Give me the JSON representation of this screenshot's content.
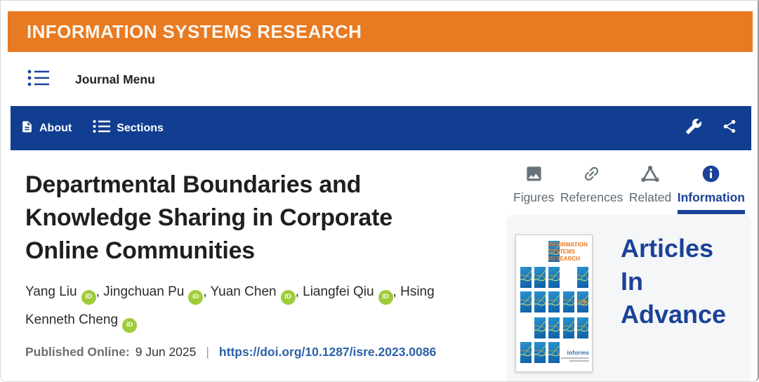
{
  "header": {
    "brand": "INFORMATION SYSTEMS RESEARCH"
  },
  "journal_menu": {
    "label": "Journal Menu",
    "icon": "menu-list-icon"
  },
  "nav": {
    "about_label": "About",
    "about_icon": "document-icon",
    "sections_label": "Sections",
    "sections_icon": "list-icon",
    "tools_icon": "wrench-icon",
    "share_icon": "share-icon"
  },
  "article": {
    "title": "Departmental Boundaries and Knowledge Sharing in Corporate Online Communities",
    "authors": [
      {
        "name": "Yang Liu",
        "orcid": true
      },
      {
        "name": "Jingchuan Pu",
        "orcid": true
      },
      {
        "name": "Yuan Chen",
        "orcid": true
      },
      {
        "name": "Liangfei Qiu",
        "orcid": true
      },
      {
        "name": "Hsing Kenneth Cheng",
        "orcid": true
      }
    ],
    "orcid_badge_text": "iD",
    "published_label": "Published Online:",
    "published_date": "9 Jun 2025",
    "separator": "|",
    "doi_url": "https://doi.org/10.1287/isre.2023.0086"
  },
  "tabs": [
    {
      "label": "Figures",
      "icon": "image-icon",
      "active": false
    },
    {
      "label": "References",
      "icon": "link-icon",
      "active": false
    },
    {
      "label": "Related",
      "icon": "related-network-icon",
      "active": false
    },
    {
      "label": "Information",
      "icon": "info-icon",
      "active": true
    }
  ],
  "promo": {
    "heading": "Articles In Advance",
    "cover": {
      "title": "INFORMATION\nSYSTEMS\nRESEARCH",
      "publisher": "informs"
    }
  },
  "colors": {
    "brand_orange": "#E87A22",
    "nav_blue": "#123E91",
    "active_blue": "#1B4298",
    "link_blue": "#2B62A9",
    "orcid_green": "#9FCC3B",
    "panel_gray": "#F5F6F7"
  }
}
